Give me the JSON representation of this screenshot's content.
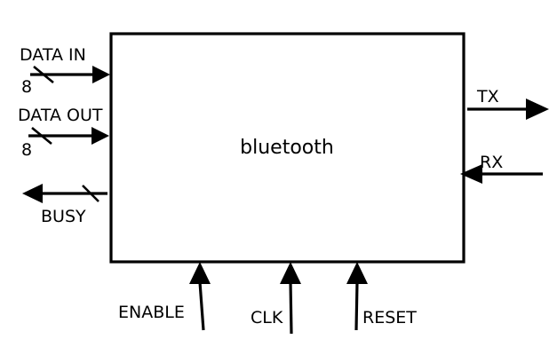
{
  "block": {
    "title": "bluetooth"
  },
  "signals": {
    "data_in": {
      "label": "DATA IN",
      "width": "8"
    },
    "data_out": {
      "label": "DATA OUT",
      "width": "8"
    },
    "busy": {
      "label": "BUSY"
    },
    "tx": {
      "label": "TX"
    },
    "rx": {
      "label": "RX"
    },
    "enable": {
      "label": "ENABLE"
    },
    "clk": {
      "label": "CLK"
    },
    "reset": {
      "label": "RESET"
    }
  }
}
